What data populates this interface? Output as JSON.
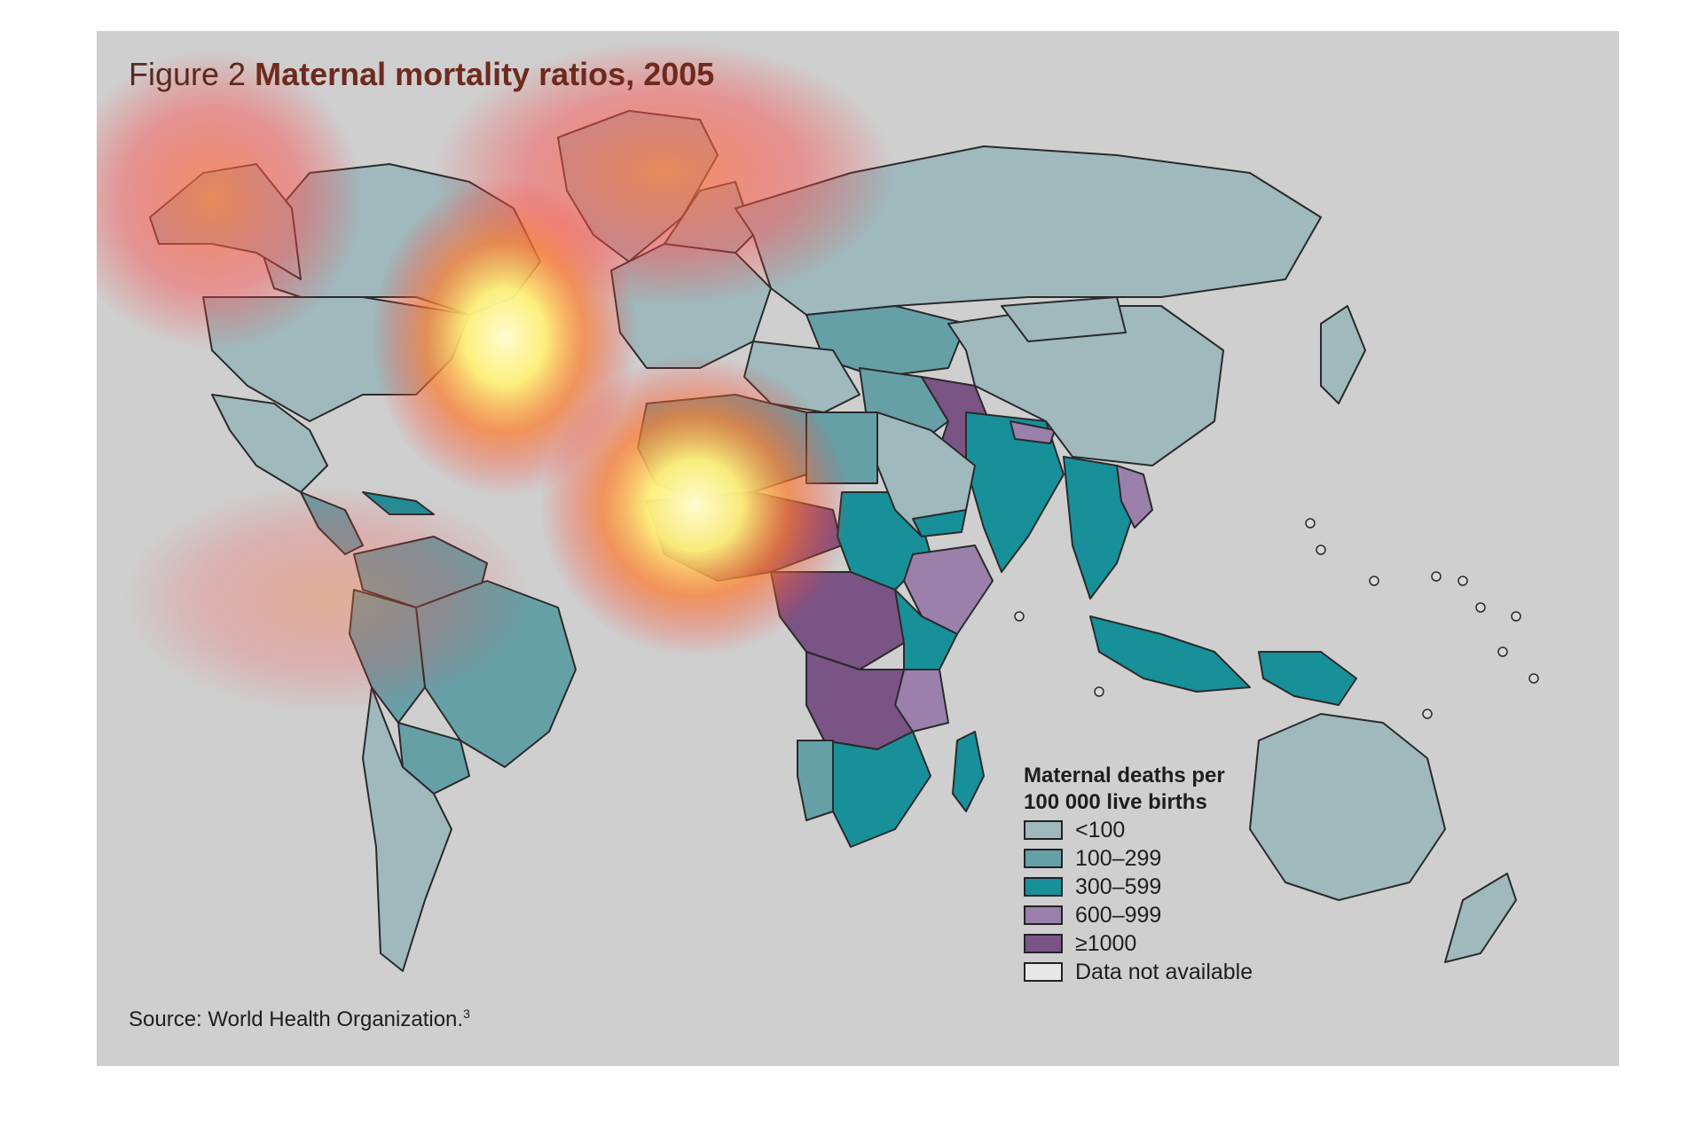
{
  "figure": {
    "label": "Figure 2",
    "title": "Maternal mortality ratios, 2005"
  },
  "legend": {
    "title_line1": "Maternal deaths per",
    "title_line2": "100 000 live births",
    "items": [
      {
        "label": "<100",
        "color": "#9fb9bd"
      },
      {
        "label": "100–299",
        "color": "#66a0a7"
      },
      {
        "label": "300–599",
        "color": "#17909a"
      },
      {
        "label": "600–999",
        "color": "#9a80ab"
      },
      {
        "label": "≥1000",
        "color": "#7a5485"
      },
      {
        "label": "Data not available",
        "color": "#e8e8e8"
      }
    ]
  },
  "source": {
    "text": "Source: World Health Organization.",
    "ref": "3"
  },
  "colors": {
    "background": "#cfcfcf",
    "border": "#2a2a2a",
    "heat_hot": "#fff27a",
    "heat_warm": "#ff4a3a"
  },
  "regions": [
    {
      "name": "canada",
      "category": 0
    },
    {
      "name": "greenland",
      "category": 0
    },
    {
      "name": "alaska",
      "category": 0
    },
    {
      "name": "usa",
      "category": 0
    },
    {
      "name": "mexico",
      "category": 0
    },
    {
      "name": "central-america",
      "category": 1
    },
    {
      "name": "caribbean",
      "category": 2
    },
    {
      "name": "northern-south-america",
      "category": 1
    },
    {
      "name": "brazil",
      "category": 1
    },
    {
      "name": "andes",
      "category": 1
    },
    {
      "name": "bolivia-paraguay",
      "category": 1
    },
    {
      "name": "southern-cone",
      "category": 0
    },
    {
      "name": "europe",
      "category": 0
    },
    {
      "name": "scandinavia",
      "category": 0
    },
    {
      "name": "russia",
      "category": 0
    },
    {
      "name": "kazakhstan",
      "category": 1
    },
    {
      "name": "middle-east",
      "category": 0
    },
    {
      "name": "iran",
      "category": 1
    },
    {
      "name": "afghanistan-pakistan",
      "category": 4
    },
    {
      "name": "india",
      "category": 2
    },
    {
      "name": "nepal",
      "category": 3
    },
    {
      "name": "china",
      "category": 0
    },
    {
      "name": "mongolia",
      "category": 0
    },
    {
      "name": "southeast-asia",
      "category": 2
    },
    {
      "name": "laos",
      "category": 3
    },
    {
      "name": "indonesia",
      "category": 2
    },
    {
      "name": "papua-new-guinea",
      "category": 2
    },
    {
      "name": "australia",
      "category": 0
    },
    {
      "name": "new-zealand",
      "category": 0
    },
    {
      "name": "japan",
      "category": 0
    },
    {
      "name": "north-africa",
      "category": 1
    },
    {
      "name": "egypt",
      "category": 1
    },
    {
      "name": "sahel-west-africa",
      "category": 4
    },
    {
      "name": "sudan",
      "category": 2
    },
    {
      "name": "ethiopia-somalia",
      "category": 3
    },
    {
      "name": "central-africa",
      "category": 4
    },
    {
      "name": "east-africa",
      "category": 2
    },
    {
      "name": "tanzania",
      "category": 3
    },
    {
      "name": "angola-zambia",
      "category": 4
    },
    {
      "name": "southern-africa",
      "category": 2
    },
    {
      "name": "namibia",
      "category": 1
    },
    {
      "name": "madagascar",
      "category": 2
    },
    {
      "name": "arabia",
      "category": 0
    },
    {
      "name": "yemen",
      "category": 2
    }
  ]
}
